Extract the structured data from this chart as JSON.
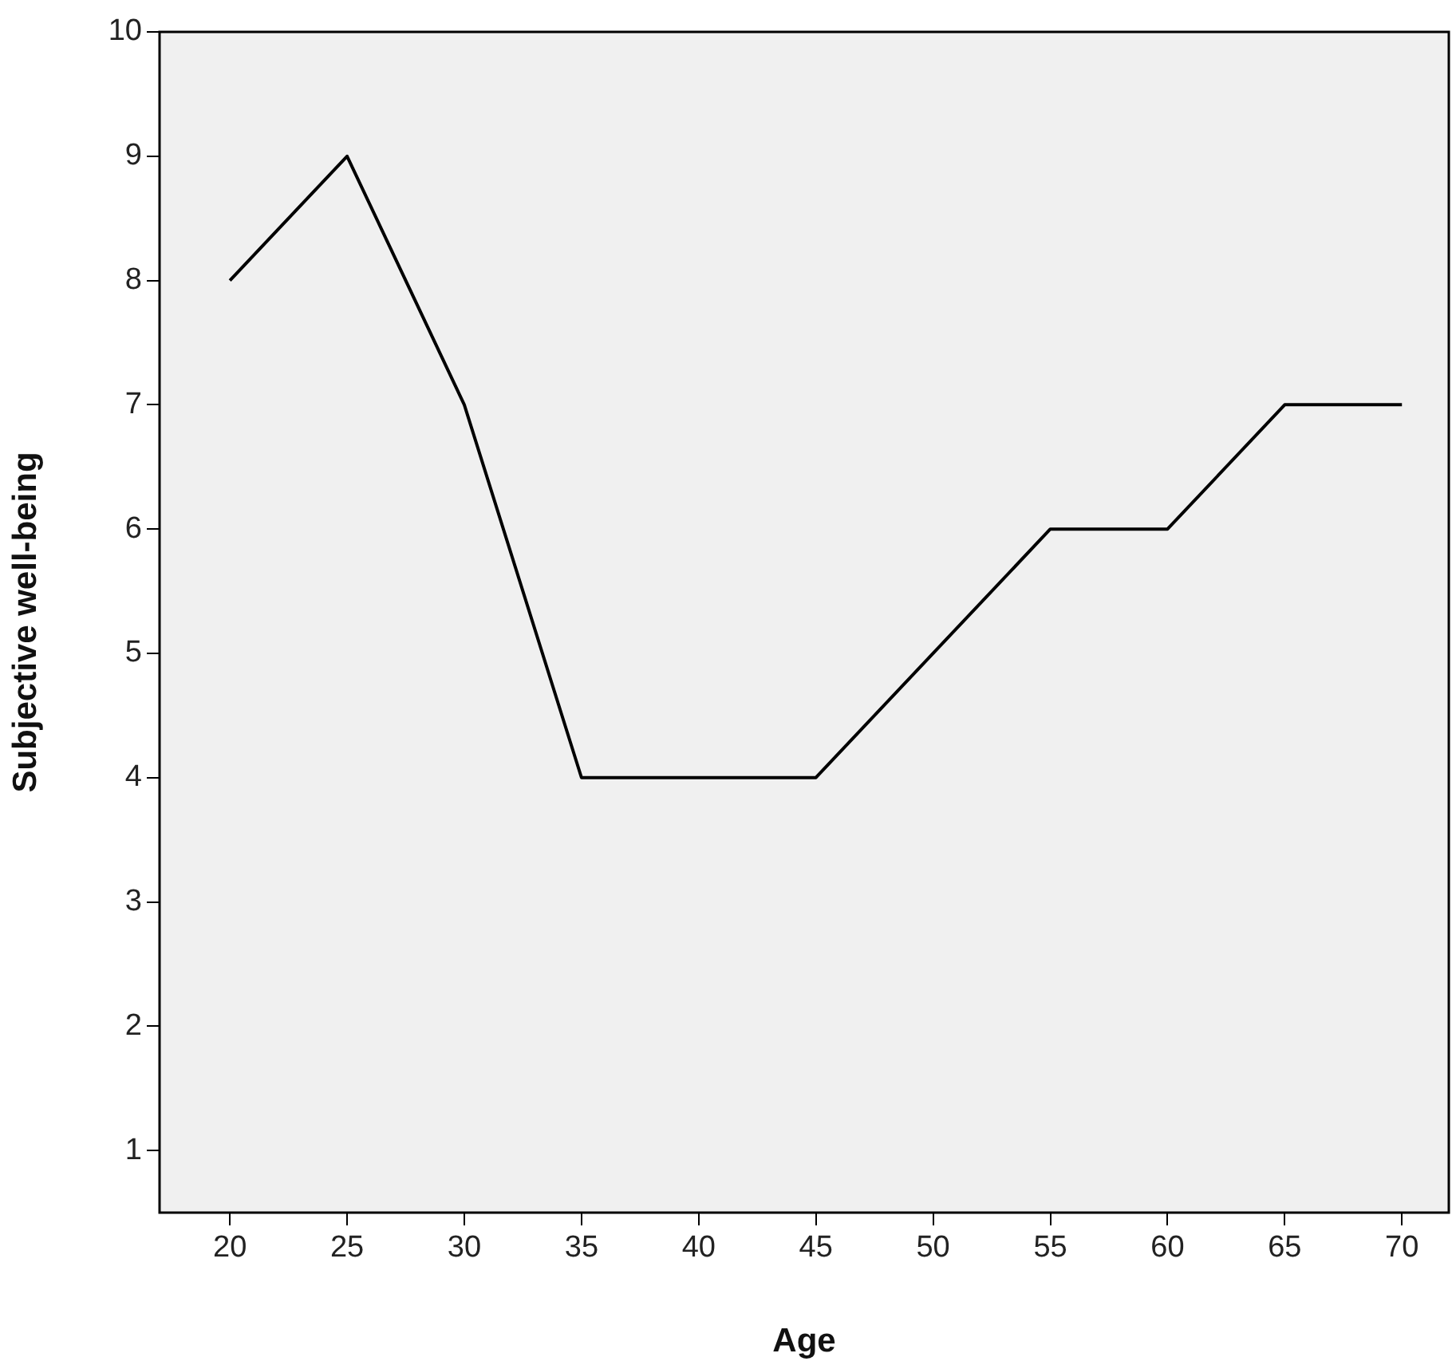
{
  "chart_data": {
    "type": "line",
    "xlabel": "Age",
    "ylabel": "Subjective well-being",
    "x": [
      20,
      25,
      30,
      35,
      40,
      45,
      50,
      55,
      60,
      65,
      70
    ],
    "series": [
      {
        "color": "#000000",
        "values": [
          8,
          9,
          7,
          4,
          4,
          4,
          5,
          6,
          6,
          7,
          7
        ]
      }
    ],
    "xlim": [
      17,
      72
    ],
    "xticks": [
      20,
      25,
      30,
      35,
      40,
      45,
      50,
      55,
      60,
      65,
      70
    ],
    "ylim": [
      0.5,
      10
    ],
    "yticks": [
      1,
      2,
      3,
      4,
      5,
      6,
      7,
      8,
      9,
      10
    ],
    "grid": false,
    "legend": false,
    "marker": "none",
    "line_style": "solid"
  }
}
